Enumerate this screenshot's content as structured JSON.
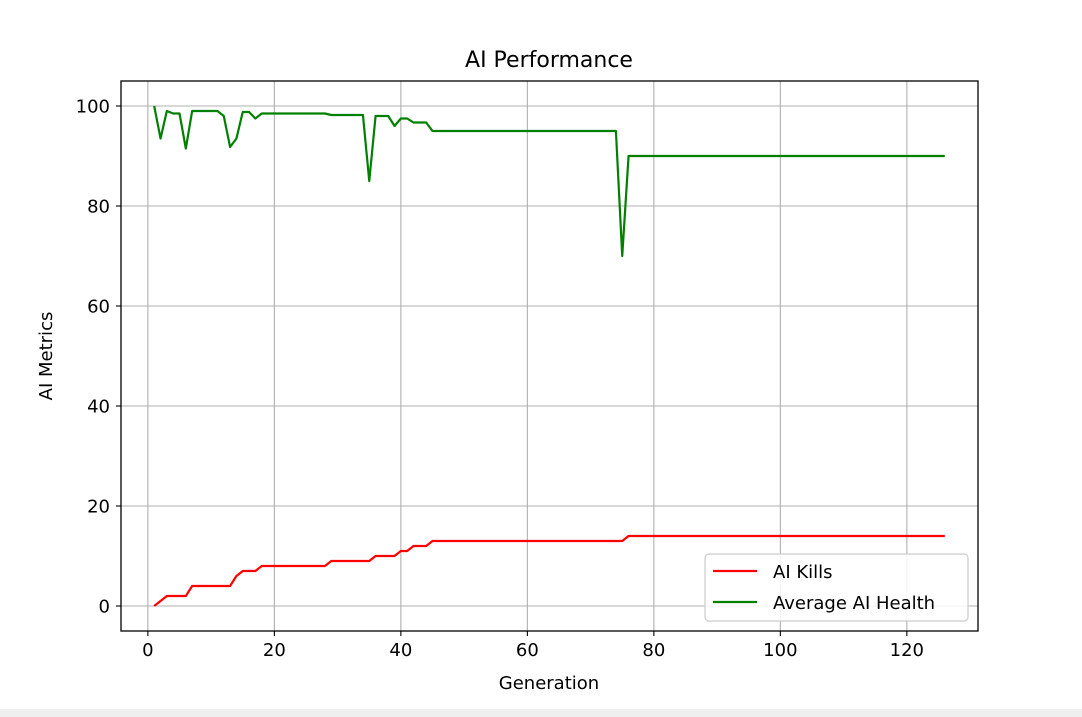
{
  "chart_data": {
    "type": "line",
    "title": "AI Performance",
    "xlabel": "Generation",
    "ylabel": "AI Metrics",
    "xlim": [
      -4.25,
      131.25
    ],
    "ylim": [
      -5,
      105
    ],
    "xticks": [
      0,
      20,
      40,
      60,
      80,
      100,
      120
    ],
    "yticks": [
      0,
      20,
      40,
      60,
      80,
      100
    ],
    "grid": true,
    "legend_position": "lower-right",
    "series": [
      {
        "name": "AI Kills",
        "color": "#ff0000",
        "points": [
          [
            1,
            0
          ],
          [
            3,
            2
          ],
          [
            6,
            2
          ],
          [
            7,
            4
          ],
          [
            13,
            4
          ],
          [
            14,
            6
          ],
          [
            15,
            7
          ],
          [
            17,
            7
          ],
          [
            18,
            8
          ],
          [
            28,
            8
          ],
          [
            29,
            9
          ],
          [
            35,
            9
          ],
          [
            36,
            10
          ],
          [
            39,
            10
          ],
          [
            40,
            11
          ],
          [
            41,
            11
          ],
          [
            42,
            12
          ],
          [
            44,
            12
          ],
          [
            45,
            13
          ],
          [
            75,
            13
          ],
          [
            76,
            14
          ],
          [
            126,
            14
          ]
        ]
      },
      {
        "name": "Average AI Health",
        "color": "#008000",
        "points": [
          [
            1,
            100
          ],
          [
            2,
            93.5
          ],
          [
            3,
            99
          ],
          [
            4,
            98.5
          ],
          [
            5,
            98.5
          ],
          [
            6,
            91.5
          ],
          [
            7,
            99
          ],
          [
            11,
            99
          ],
          [
            12,
            98
          ],
          [
            13,
            91.8
          ],
          [
            14,
            93.5
          ],
          [
            15,
            98.8
          ],
          [
            16,
            98.8
          ],
          [
            17,
            97.5
          ],
          [
            18,
            98.5
          ],
          [
            28,
            98.5
          ],
          [
            29,
            98.2
          ],
          [
            34,
            98.2
          ],
          [
            35,
            85
          ],
          [
            36,
            98
          ],
          [
            38,
            98
          ],
          [
            39,
            96
          ],
          [
            40,
            97.5
          ],
          [
            41,
            97.5
          ],
          [
            42,
            96.7
          ],
          [
            44,
            96.7
          ],
          [
            45,
            95
          ],
          [
            74,
            95
          ],
          [
            75,
            70
          ],
          [
            76,
            90
          ],
          [
            126,
            90
          ]
        ]
      }
    ]
  }
}
